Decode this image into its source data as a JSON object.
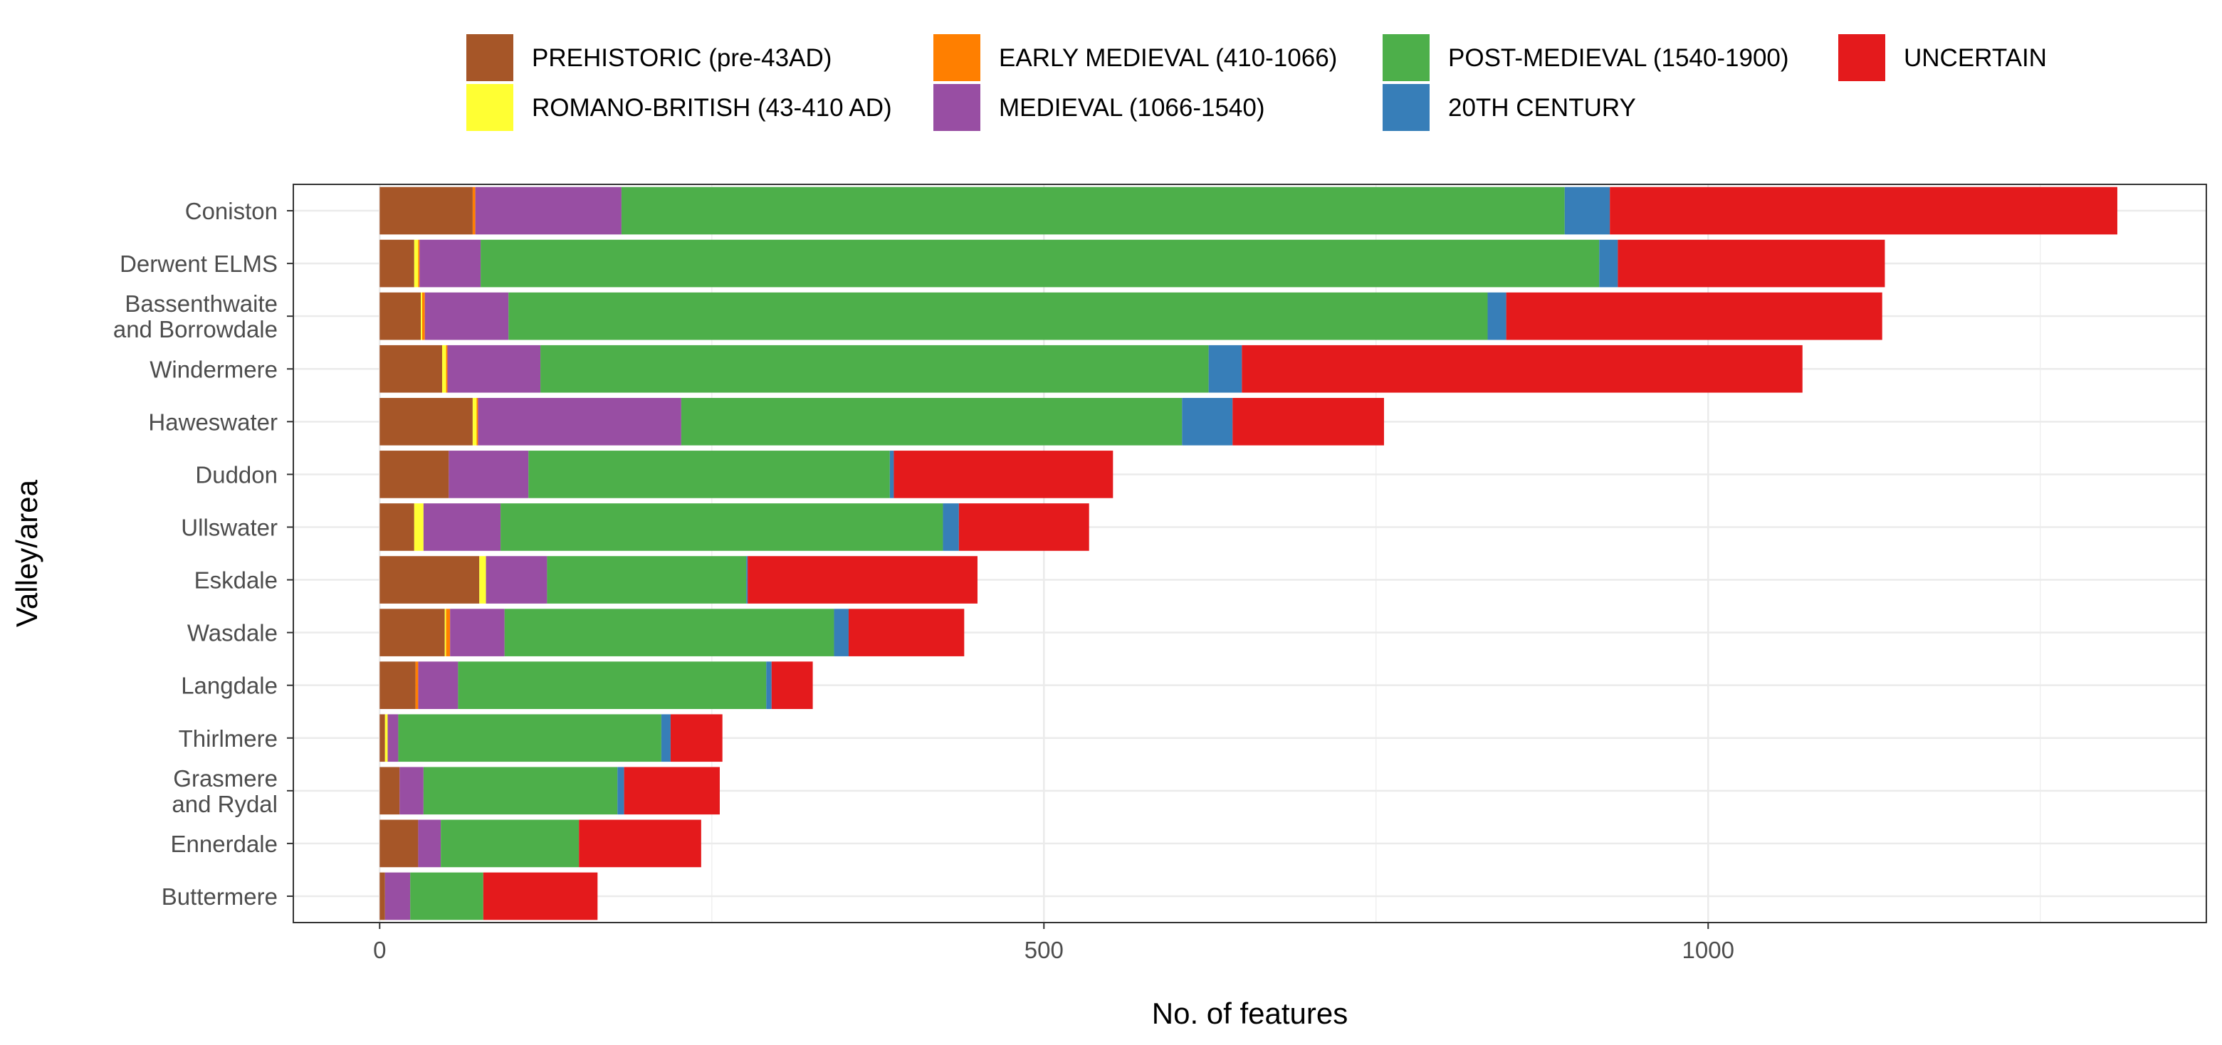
{
  "chart_data": {
    "type": "bar",
    "orientation": "horizontal",
    "stacked": true,
    "title": "",
    "xlabel": "No. of features",
    "ylabel": "Valley/area",
    "xlim": [
      -65,
      1375
    ],
    "xticks": [
      0,
      500,
      1000
    ],
    "grid": true,
    "legend_position": "top",
    "categories": [
      "Coniston",
      "Derwent ELMS",
      "Bassenthwaite\nand Borrowdale",
      "Windermere",
      "Haweswater",
      "Duddon",
      "Ullswater",
      "Eskdale",
      "Wasdale",
      "Langdale",
      "Thirlmere",
      "Grasmere\nand Rydal",
      "Ennerdale",
      "Buttermere"
    ],
    "series": [
      {
        "name": "PREHISTORIC (pre-43AD)",
        "color": "#A65628",
        "values": [
          70,
          26,
          31,
          47,
          70,
          52,
          26,
          75,
          49,
          27,
          4,
          15,
          29,
          4
        ]
      },
      {
        "name": "ROMANO-BRITISH (43-410 AD)",
        "color": "#FFFF33",
        "values": [
          0,
          3,
          1,
          3,
          3,
          0,
          7,
          5,
          1,
          0,
          2,
          0,
          0,
          0
        ]
      },
      {
        "name": "EARLY MEDIEVAL (410-1066)",
        "color": "#FF7F00",
        "values": [
          2,
          1,
          2,
          1,
          1,
          0,
          0,
          0,
          3,
          2,
          0,
          0,
          0,
          0
        ]
      },
      {
        "name": "MEDIEVAL (1066-1540)",
        "color": "#984EA3",
        "values": [
          110,
          46,
          63,
          70,
          153,
          60,
          58,
          46,
          41,
          30,
          8,
          18,
          17,
          19
        ]
      },
      {
        "name": "POST-MEDIEVAL (1540-1900)",
        "color": "#4DAF4A",
        "values": [
          710,
          842,
          737,
          503,
          377,
          272,
          333,
          150,
          248,
          232,
          198,
          146,
          104,
          55
        ]
      },
      {
        "name": "20TH CENTURY",
        "color": "#377EB8",
        "values": [
          34,
          14,
          14,
          25,
          38,
          3,
          12,
          1,
          11,
          4,
          7,
          5,
          0,
          0
        ]
      },
      {
        "name": "UNCERTAIN",
        "color": "#E41A1C",
        "values": [
          382,
          201,
          283,
          422,
          114,
          165,
          98,
          173,
          87,
          31,
          39,
          72,
          92,
          86
        ]
      }
    ]
  }
}
